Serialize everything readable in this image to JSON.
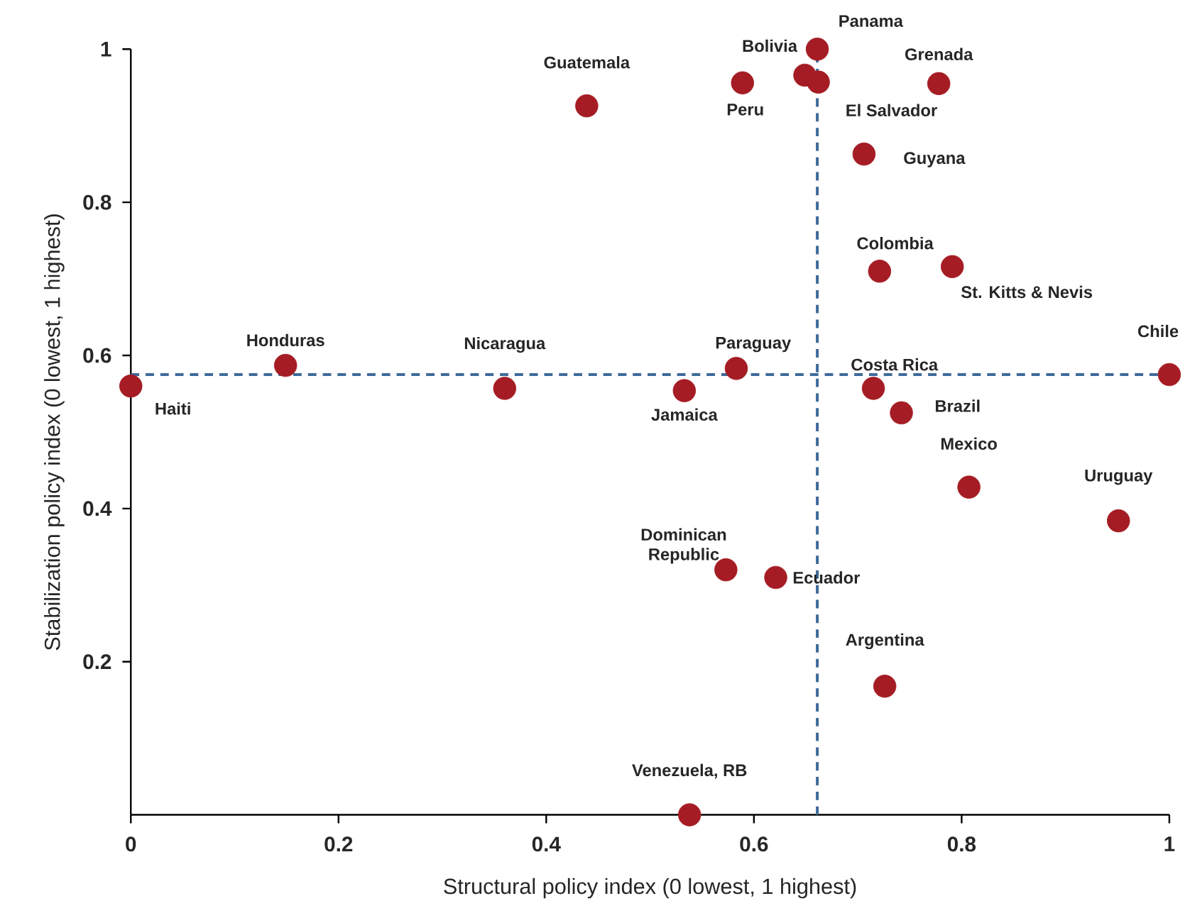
{
  "chart_data": {
    "type": "scatter",
    "xlabel": "Structural policy index (0 lowest, 1 highest)",
    "ylabel": "Stabilization policy index (0 lowest, 1 highest)",
    "xlim": [
      0,
      1
    ],
    "ylim": [
      0,
      1
    ],
    "xticks": [
      0,
      0.2,
      0.4,
      0.6,
      0.8,
      1
    ],
    "yticks": [
      0.2,
      0.4,
      0.6,
      0.8,
      1
    ],
    "marker": "circle",
    "grid": false,
    "series": [
      {
        "color": "#a51c24",
        "x": [
          0,
          0.149,
          0.36,
          0.439,
          0.661,
          0.649,
          0.589,
          0.778,
          0.662,
          0.706,
          0.721,
          0.791,
          0.583,
          0.533,
          0.715,
          0.742,
          1.0,
          0.807,
          0.951,
          0.573,
          0.621,
          0.726,
          0.538
        ],
        "values": [
          0.56,
          0.587,
          0.557,
          0.926,
          1.0,
          0.966,
          0.956,
          0.955,
          0.957,
          0.863,
          0.71,
          0.716,
          0.583,
          0.554,
          0.557,
          0.525,
          0.575,
          0.428,
          0.384,
          0.32,
          0.31,
          0.168,
          0.0
        ]
      }
    ],
    "ref_lines": [
      {
        "axis": "y",
        "value": 0.575,
        "color": "#3f6a9a",
        "line_style": "dashed"
      },
      {
        "axis": "x",
        "value": 0.661,
        "color": "#3f6a9a",
        "line_style": "dashed"
      }
    ],
    "annotations": [
      {
        "text": "Haiti",
        "x": 0,
        "y": 0.56
      },
      {
        "text": "Honduras",
        "x": 0.149,
        "y": 0.587
      },
      {
        "text": "Nicaragua",
        "x": 0.36,
        "y": 0.557
      },
      {
        "text": "Guatemala",
        "x": 0.439,
        "y": 0.926
      },
      {
        "text": "Panama",
        "x": 0.661,
        "y": 1.0
      },
      {
        "text": "Bolivia",
        "x": 0.649,
        "y": 0.966
      },
      {
        "text": "Peru",
        "x": 0.589,
        "y": 0.956
      },
      {
        "text": "Grenada",
        "x": 0.778,
        "y": 0.955
      },
      {
        "text": "El Salvador",
        "x": 0.662,
        "y": 0.957
      },
      {
        "text": "Guyana",
        "x": 0.706,
        "y": 0.863
      },
      {
        "text": "Colombia",
        "x": 0.721,
        "y": 0.71
      },
      {
        "text": "St. Kitts & Nevis",
        "x": 0.791,
        "y": 0.716
      },
      {
        "text": "Paraguay",
        "x": 0.583,
        "y": 0.583
      },
      {
        "text": "Jamaica",
        "x": 0.533,
        "y": 0.554
      },
      {
        "text": "Costa Rica",
        "x": 0.715,
        "y": 0.557
      },
      {
        "text": "Brazil",
        "x": 0.742,
        "y": 0.525
      },
      {
        "text": "Chile",
        "x": 1.0,
        "y": 0.575
      },
      {
        "text": "Mexico",
        "x": 0.807,
        "y": 0.428
      },
      {
        "text": "Uruguay",
        "x": 0.951,
        "y": 0.384
      },
      {
        "text": "Dominican Republic",
        "x": 0.573,
        "y": 0.32
      },
      {
        "text": "Ecuador",
        "x": 0.621,
        "y": 0.31
      },
      {
        "text": "Argentina",
        "x": 0.726,
        "y": 0.168
      },
      {
        "text": "Venezuela, RB",
        "x": 0.538,
        "y": 0.0
      }
    ]
  }
}
